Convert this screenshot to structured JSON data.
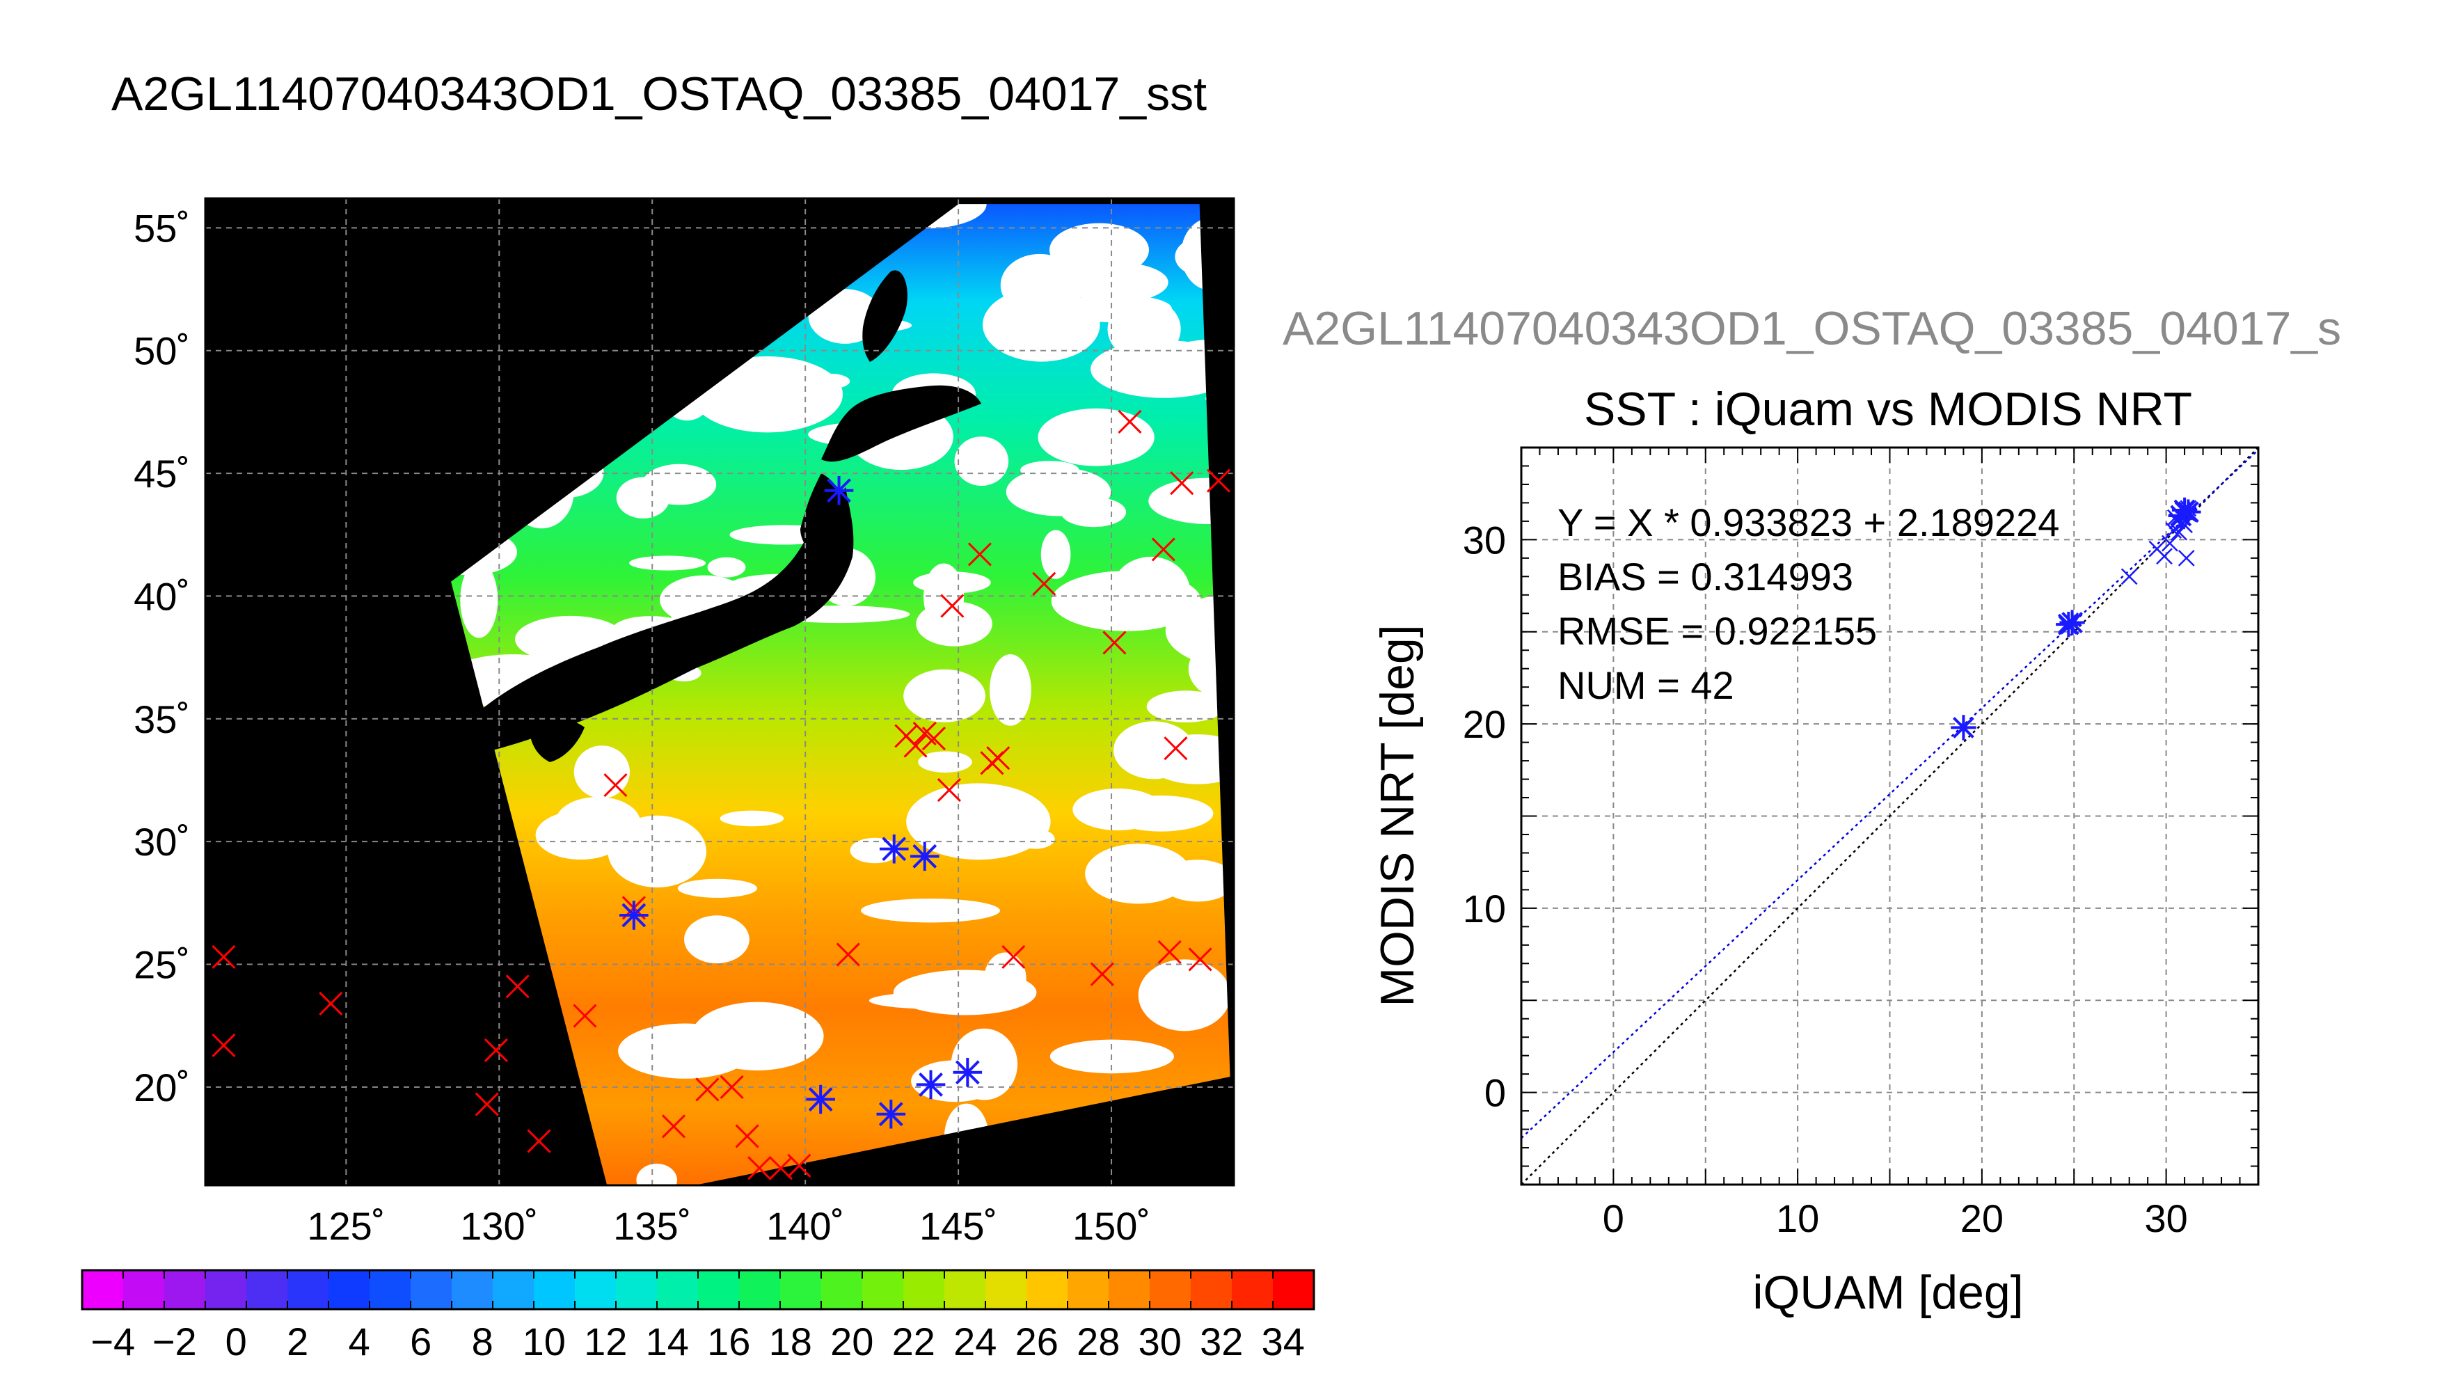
{
  "page_title": "A2GL11407040343OD1_OSTAQ_03385_04017_sst",
  "chart_data": [
    {
      "type": "map",
      "lat_ticks": [
        55,
        50,
        45,
        40,
        35,
        30,
        25,
        20
      ],
      "lon_ticks": [
        125,
        130,
        135,
        140,
        145,
        150
      ],
      "lat_tick_labels": [
        "55˚",
        "50˚",
        "45˚",
        "40˚",
        "35˚",
        "30˚",
        "25˚",
        "20˚"
      ],
      "lon_tick_labels": [
        "125˚",
        "130˚",
        "135˚",
        "140˚",
        "145˚",
        "150˚"
      ],
      "lon_range": [
        120.4,
        154.0
      ],
      "lat_range": [
        16.0,
        56.2
      ],
      "grid": true,
      "swath_corners": [
        [
          128.4,
          40.6
        ],
        [
          145.0,
          56.0
        ],
        [
          152.9,
          56.0
        ],
        [
          153.9,
          20.4
        ],
        [
          136.5,
          16.0
        ],
        [
          133.5,
          16.0
        ]
      ],
      "red_marks": [
        [
          121.0,
          25.3
        ],
        [
          121.0,
          21.7
        ],
        [
          124.5,
          23.4
        ],
        [
          130.6,
          24.1
        ],
        [
          129.9,
          21.5
        ],
        [
          129.6,
          19.3
        ],
        [
          131.3,
          17.8
        ],
        [
          132.8,
          22.9
        ],
        [
          133.8,
          32.3
        ],
        [
          134.4,
          27.3
        ],
        [
          135.7,
          18.4
        ],
        [
          136.8,
          19.9
        ],
        [
          137.6,
          20.0
        ],
        [
          138.1,
          18.0
        ],
        [
          138.5,
          16.7
        ],
        [
          139.2,
          16.7
        ],
        [
          139.8,
          16.8
        ],
        [
          141.4,
          25.4
        ],
        [
          143.3,
          34.3
        ],
        [
          143.6,
          33.9
        ],
        [
          143.9,
          34.4
        ],
        [
          144.2,
          34.2
        ],
        [
          144.7,
          32.1
        ],
        [
          144.8,
          39.6
        ],
        [
          145.7,
          41.7
        ],
        [
          146.1,
          33.2
        ],
        [
          146.3,
          33.4
        ],
        [
          146.8,
          25.3
        ],
        [
          147.8,
          40.5
        ],
        [
          149.7,
          24.6
        ],
        [
          150.1,
          38.1
        ],
        [
          150.6,
          47.1
        ],
        [
          151.7,
          41.9
        ],
        [
          151.9,
          25.5
        ],
        [
          152.1,
          33.8
        ],
        [
          152.3,
          44.6
        ],
        [
          152.9,
          25.2
        ],
        [
          153.5,
          44.7
        ]
      ],
      "blue_marks": [
        [
          141.1,
          44.3
        ],
        [
          142.9,
          29.7
        ],
        [
          143.9,
          29.4
        ],
        [
          134.4,
          27.0
        ],
        [
          140.5,
          19.5
        ],
        [
          142.8,
          18.9
        ],
        [
          144.1,
          20.1
        ],
        [
          145.3,
          20.6
        ]
      ],
      "colorbar": {
        "min": -5,
        "max": 35,
        "ticks": [
          -4,
          -2,
          0,
          2,
          4,
          6,
          8,
          10,
          12,
          14,
          16,
          18,
          20,
          22,
          24,
          26,
          28,
          30,
          32,
          34
        ],
        "tick_labels": [
          "−4",
          "−2",
          "0",
          "2",
          "4",
          "6",
          "8",
          "10",
          "12",
          "14",
          "16",
          "18",
          "20",
          "22",
          "24",
          "26",
          "28",
          "30",
          "32",
          "34"
        ],
        "colors": [
          "#ee00ff",
          "#c30bf6",
          "#9c18ee",
          "#7424ee",
          "#4c2ff3",
          "#2a35fb",
          "#0e3bff",
          "#0f4eff",
          "#1c6dff",
          "#1e8bff",
          "#11a8ff",
          "#00c6ff",
          "#00dcf0",
          "#00e8d2",
          "#00efaa",
          "#00f282",
          "#10f25a",
          "#2cf33c",
          "#4ef21f",
          "#73f00b",
          "#99eb00",
          "#bee600",
          "#e3dd00",
          "#ffc600",
          "#ffa700",
          "#ff8a00",
          "#ff6900",
          "#ff4800",
          "#ff2500",
          "#ff0000"
        ]
      }
    },
    {
      "type": "scatter",
      "title_overflow": "A2GL11407040343OD1_OSTAQ_03385_04017_s",
      "title": "SST : iQuam vs MODIS NRT",
      "xlabel": "iQUAM [deg]",
      "ylabel": "MODIS NRT [deg]",
      "xlim": [
        -5,
        35
      ],
      "ylim": [
        -5,
        35
      ],
      "xticks": [
        0,
        10,
        20,
        30
      ],
      "yticks": [
        0,
        10,
        20,
        30
      ],
      "grid": true,
      "annotations": [
        "Y = X * 0.933823 + 2.189224",
        "BIAS = 0.314993",
        "RMSE = 0.922155",
        "NUM = 42"
      ],
      "fit": {
        "slope": 0.933823,
        "intercept": 2.189224
      },
      "points": [
        [
          19.0,
          19.8
        ],
        [
          24.6,
          25.4
        ],
        [
          24.8,
          25.6
        ],
        [
          24.7,
          25.3
        ],
        [
          24.9,
          25.5
        ],
        [
          28.0,
          28.0
        ],
        [
          29.5,
          29.5
        ],
        [
          29.9,
          29.1
        ],
        [
          30.2,
          29.8
        ],
        [
          30.4,
          30.5
        ],
        [
          30.6,
          31.0
        ],
        [
          30.7,
          30.4
        ],
        [
          30.8,
          31.3
        ],
        [
          30.9,
          31.6
        ],
        [
          31.0,
          30.8
        ],
        [
          31.0,
          31.5
        ],
        [
          31.1,
          29.0
        ],
        [
          31.2,
          31.4
        ],
        [
          30.5,
          31.2
        ],
        [
          30.9,
          30.9
        ],
        [
          31.2,
          31.7
        ]
      ],
      "star_points": [
        [
          19.0,
          19.8
        ],
        [
          24.7,
          25.4
        ],
        [
          24.9,
          25.5
        ],
        [
          30.8,
          31.3
        ],
        [
          31.0,
          31.6
        ],
        [
          31.2,
          31.5
        ]
      ]
    }
  ]
}
